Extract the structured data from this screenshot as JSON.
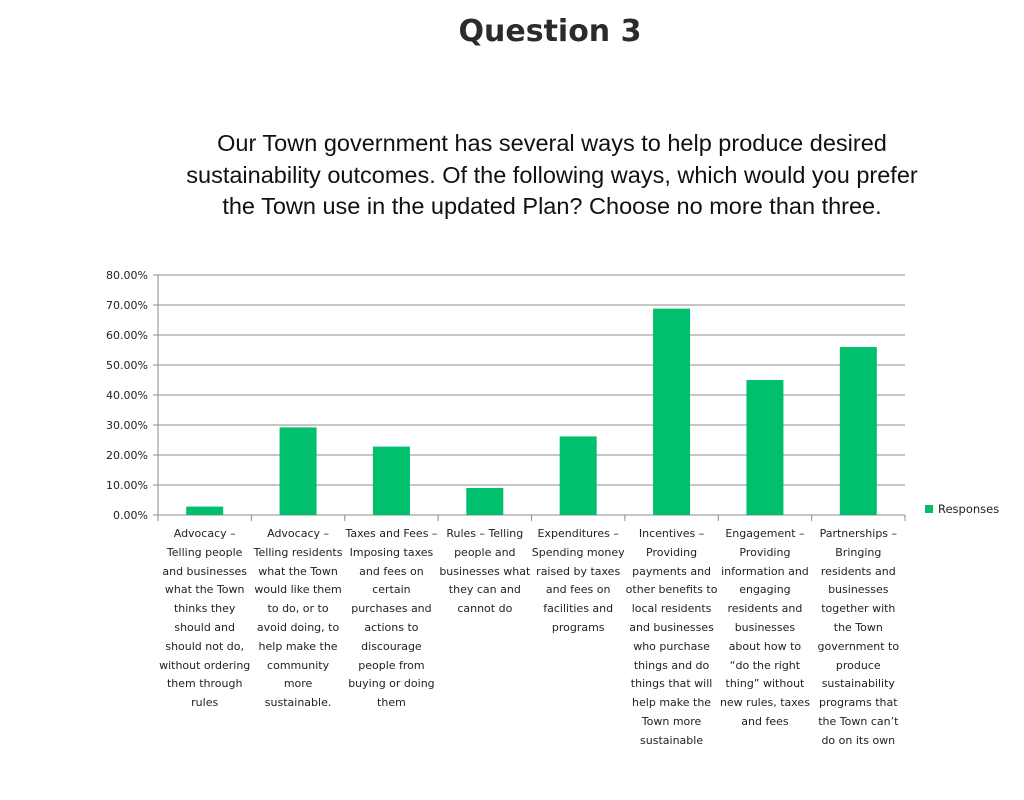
{
  "page": {
    "title": "Question 3"
  },
  "chart_data": {
    "type": "bar",
    "title": "Our Town government has several ways to help produce desired sustainability outcomes. Of the following ways, which would you prefer the Town use in the updated Plan? Choose no more than three.",
    "categories": [
      "Advocacy –\nTelling people\nand businesses\nwhat the Town\nthinks they\nshould and\nshould not do,\nwithout ordering\nthem through\nrules",
      "Advocacy –\nTelling residents\nwhat the Town\nwould like them\nto do, or to\navoid doing, to\nhelp make the\ncommunity\nmore\nsustainable.",
      "Taxes and Fees –\nImposing taxes\nand fees on\ncertain\npurchases and\nactions to\ndiscourage\npeople from\nbuying or doing\nthem",
      "Rules – Telling\npeople and\nbusinesses what\nthey can and\ncannot do",
      "Expenditures –\nSpending money\nraised by taxes\nand fees on\nfacilities and\nprograms",
      "Incentives –\nProviding\npayments and\nother benefits to\nlocal residents\nand businesses\nwho purchase\nthings and do\nthings that will\nhelp make the\nTown more\nsustainable",
      "Engagement –\nProviding\ninformation and\nengaging\nresidents and\nbusinesses\nabout how to\n“do the right\nthing” without\nnew rules, taxes\nand fees",
      "Partnerships –\nBringing\nresidents and\nbusinesses\ntogether with\nthe Town\ngovernment to\nproduce\nsustainability\nprograms that\nthe Town can’t\ndo on its own"
    ],
    "series": [
      {
        "name": "Responses",
        "values": [
          2.8,
          29.2,
          22.8,
          9.0,
          26.2,
          68.8,
          45.0,
          56.0
        ]
      }
    ],
    "yticks": [
      "0.00%",
      "10.00%",
      "20.00%",
      "30.00%",
      "40.00%",
      "50.00%",
      "60.00%",
      "70.00%",
      "80.00%"
    ],
    "ylim": [
      0,
      80
    ],
    "grid": true,
    "legend": "right",
    "colors": {
      "bar": "#00c06e",
      "grid": "#8c8c8c",
      "axis": "#8c8c8c"
    }
  }
}
